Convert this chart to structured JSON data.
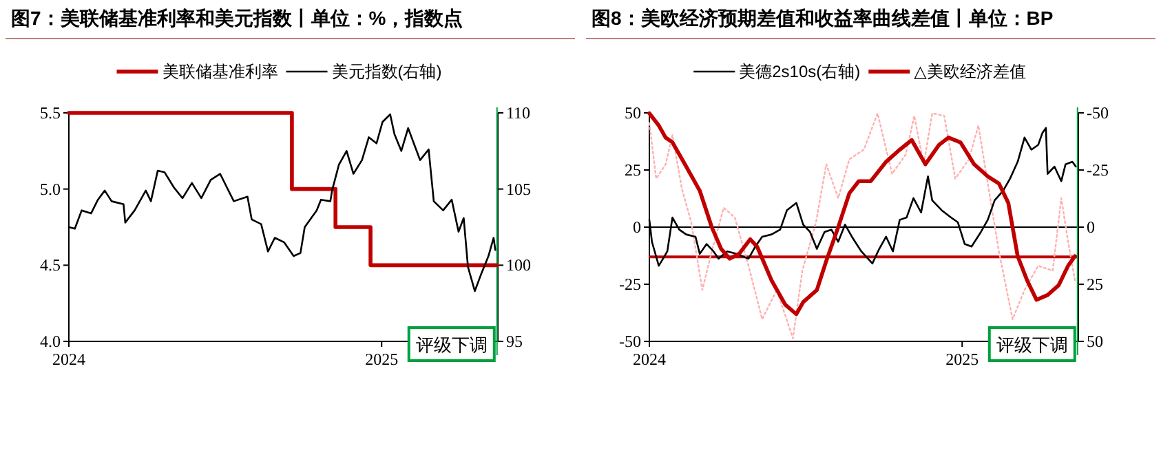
{
  "chart_data": [
    {
      "type": "line",
      "title": "图7：美联储基准利率和美元指数丨单位：%，指数点",
      "legend": "top",
      "xlim": [
        "2024-01-01",
        "2025-05-17"
      ],
      "xticks": [
        {
          "value": "2024-01-01",
          "label": "2024"
        },
        {
          "value": "2025-01-01",
          "label": "2025"
        }
      ],
      "ylim": [
        4,
        5.5
      ],
      "yticks": [
        {
          "value": 4,
          "label": "4.0"
        },
        {
          "value": 4.5,
          "label": "4.5"
        },
        {
          "value": 5,
          "label": "5.0"
        },
        {
          "value": 5.5,
          "label": "5.5"
        }
      ],
      "y2lim": [
        95,
        110
      ],
      "y2ticks": [
        95,
        100,
        105,
        110
      ],
      "ref_lines": [
        {
          "axis": "x",
          "value": "2025-05-16",
          "label": "评级下调",
          "color": "#00a040"
        }
      ],
      "series": [
        {
          "name": "美联储基准利率",
          "type": "step",
          "color": "#c00000",
          "x": [
            "2024-01-01",
            "2024-09-18",
            "2024-11-08",
            "2024-12-19",
            "2025-05-16"
          ],
          "values": [
            5.5,
            5.0,
            4.75,
            4.5,
            4.5
          ]
        },
        {
          "name": "美元指数(右轴)",
          "type": "line",
          "axis": "y2",
          "color": "#000000",
          "x": [
            "2024-01-01",
            "2024-01-08",
            "2024-01-16",
            "2024-01-27",
            "2024-02-04",
            "2024-02-12",
            "2024-02-20",
            "2024-03-05",
            "2024-03-07",
            "2024-03-18",
            "2024-03-31",
            "2024-04-06",
            "2024-04-14",
            "2024-04-22",
            "2024-05-03",
            "2024-05-13",
            "2024-05-24",
            "2024-06-04",
            "2024-06-15",
            "2024-06-26",
            "2024-07-04",
            "2024-07-12",
            "2024-07-28",
            "2024-08-02",
            "2024-08-13",
            "2024-08-21",
            "2024-08-29",
            "2024-09-09",
            "2024-09-20",
            "2024-09-28",
            "2024-10-03",
            "2024-10-17",
            "2024-10-22",
            "2024-11-02",
            "2024-11-04",
            "2024-11-12",
            "2024-11-21",
            "2024-11-29",
            "2024-12-09",
            "2024-12-17",
            "2024-12-26",
            "2025-01-02",
            "2025-01-11",
            "2025-01-16",
            "2025-01-24",
            "2025-02-01",
            "2025-02-09",
            "2025-02-15",
            "2025-02-25",
            "2025-03-03",
            "2025-03-14",
            "2025-03-24",
            "2025-04-01",
            "2025-04-07",
            "2025-04-12",
            "2025-04-20",
            "2025-04-28",
            "2025-05-06",
            "2025-05-12",
            "2025-05-14"
          ],
          "values": [
            102.5,
            102.4,
            103.6,
            103.4,
            104.3,
            104.9,
            104.2,
            104.0,
            102.8,
            103.6,
            104.9,
            104.2,
            106.2,
            106.1,
            105.1,
            104.4,
            105.4,
            104.4,
            105.6,
            106.0,
            105.1,
            104.2,
            104.5,
            103.0,
            102.7,
            100.9,
            101.8,
            101.5,
            100.6,
            100.8,
            102.5,
            103.6,
            104.3,
            104.2,
            104.9,
            106.6,
            107.5,
            106.0,
            106.9,
            108.4,
            108.0,
            109.4,
            109.9,
            108.6,
            107.5,
            109.0,
            107.8,
            106.9,
            107.6,
            104.2,
            103.6,
            104.3,
            102.2,
            103.1,
            99.9,
            98.3,
            99.5,
            100.6,
            101.8,
            101.0
          ]
        }
      ]
    },
    {
      "type": "line",
      "title": "图8：美欧经济预期差值和收益率曲线差值丨单位：BP",
      "legend": "top",
      "xlim": [
        "2024-01-01",
        "2025-05-17"
      ],
      "xticks": [
        {
          "value": "2024-01-01",
          "label": "2024"
        },
        {
          "value": "2025-01-01",
          "label": "2025"
        }
      ],
      "ylim": [
        -50,
        50
      ],
      "yticks": [
        -50,
        -25,
        0,
        25,
        50
      ],
      "y2lim": [
        50,
        -50
      ],
      "y2ticks": [
        -50,
        -25,
        0,
        25,
        50
      ],
      "ref_lines": [
        {
          "axis": "y",
          "value": 0,
          "color": "#000000"
        },
        {
          "axis": "y",
          "value": -13,
          "color": "#c00000"
        },
        {
          "axis": "x",
          "value": "2025-05-16",
          "label": "评级下调",
          "color": "#00a040"
        }
      ],
      "series": [
        {
          "type": "line",
          "line_style": "dotted",
          "color": "#ffb0b0",
          "x": [
            "2024-01-01",
            "2024-01-09",
            "2024-01-20",
            "2024-01-28",
            "2024-02-08",
            "2024-02-19",
            "2024-03-03",
            "2024-03-14",
            "2024-03-28",
            "2024-04-10",
            "2024-04-26",
            "2024-05-12",
            "2024-05-29",
            "2024-06-17",
            "2024-06-28",
            "2024-07-14",
            "2024-07-26",
            "2024-08-09",
            "2024-08-22",
            "2024-09-08",
            "2024-09-24",
            "2024-10-11",
            "2024-10-27",
            "2024-11-06",
            "2024-11-17",
            "2024-11-27",
            "2024-12-11",
            "2024-12-24",
            "2025-01-09",
            "2025-01-20",
            "2025-01-31",
            "2025-02-13",
            "2025-03-01",
            "2025-03-15",
            "2025-03-31",
            "2025-04-17",
            "2025-04-27",
            "2025-05-05",
            "2025-05-13"
          ],
          "values": [
            45.6,
            21.2,
            27.5,
            40.3,
            16.9,
            2.1,
            -27.5,
            -10.6,
            8.5,
            4.2,
            -16.9,
            -40.3,
            -27.5,
            -48.7,
            -19.1,
            2.1,
            27.5,
            12.7,
            29.7,
            33.9,
            49.8,
            23.3,
            31.8,
            48.7,
            27.5,
            49.8,
            48.7,
            21.2,
            29.7,
            44.5,
            19.1,
            -10.6,
            -40.3,
            -27.5,
            -16.9,
            -19.1,
            12.7,
            -6.4,
            -23.3
          ]
        },
        {
          "name": "美德2s10s(右轴)",
          "type": "line",
          "axis": "y2",
          "color": "#000000",
          "x": [
            "2024-01-01",
            "2024-01-04",
            "2024-01-12",
            "2024-01-17",
            "2024-01-22",
            "2024-01-28",
            "2024-02-05",
            "2024-02-13",
            "2024-02-24",
            "2024-02-29",
            "2024-03-08",
            "2024-03-16",
            "2024-03-22",
            "2024-04-01",
            "2024-04-12",
            "2024-04-26",
            "2024-05-04",
            "2024-05-12",
            "2024-05-23",
            "2024-06-02",
            "2024-06-10",
            "2024-06-21",
            "2024-06-29",
            "2024-07-07",
            "2024-07-15",
            "2024-07-24",
            "2024-08-01",
            "2024-08-09",
            "2024-08-17",
            "2024-08-25",
            "2024-09-05",
            "2024-09-18",
            "2024-09-26",
            "2024-10-04",
            "2024-10-12",
            "2024-10-20",
            "2024-10-28",
            "2024-11-05",
            "2024-11-14",
            "2024-11-22",
            "2024-11-27",
            "2024-12-08",
            "2024-12-19",
            "2024-12-27",
            "2025-01-04",
            "2025-01-12",
            "2025-01-23",
            "2025-01-31",
            "2025-02-08",
            "2025-02-18",
            "2025-02-26",
            "2025-03-07",
            "2025-03-15",
            "2025-03-23",
            "2025-03-31",
            "2025-04-05",
            "2025-04-09",
            "2025-04-11",
            "2025-04-19",
            "2025-04-27",
            "2025-05-02",
            "2025-05-10",
            "2025-05-14"
          ],
          "values": [
            -3.2,
            6.4,
            16.9,
            13.8,
            10.6,
            -4.2,
            1.1,
            3.2,
            4.2,
            11.7,
            7.4,
            10.6,
            13.8,
            10.6,
            11.7,
            13.8,
            8.5,
            4.2,
            3.2,
            1.1,
            -7.4,
            -10.6,
            -1.1,
            2.1,
            9.5,
            2.1,
            1.1,
            6.4,
            -1.1,
            4.2,
            10.6,
            15.9,
            9.5,
            4.2,
            10.6,
            -3.2,
            -4.2,
            -12.7,
            -6.4,
            -22.2,
            -11.7,
            -7.4,
            -4.2,
            -2.1,
            7.4,
            8.5,
            2.1,
            -3.2,
            -11.7,
            -15.9,
            -21.2,
            -28.6,
            -39.2,
            -33.9,
            -36.0,
            -41.3,
            -43.4,
            -23.3,
            -26.5,
            -20.1,
            -27.5,
            -28.6,
            -26.5
          ]
        },
        {
          "name": "△美欧经济差值",
          "type": "line",
          "color": "#c00000",
          "x": [
            "2024-01-01",
            "2024-01-12",
            "2024-01-20",
            "2024-01-28",
            "2024-02-10",
            "2024-02-29",
            "2024-03-14",
            "2024-03-25",
            "2024-04-04",
            "2024-04-15",
            "2024-04-28",
            "2024-05-06",
            "2024-05-23",
            "2024-06-08",
            "2024-06-21",
            "2024-06-29",
            "2024-07-15",
            "2024-07-26",
            "2024-08-09",
            "2024-08-22",
            "2024-09-02",
            "2024-09-16",
            "2024-10-04",
            "2024-10-20",
            "2024-11-03",
            "2024-11-19",
            "2024-12-05",
            "2024-12-16",
            "2024-12-30",
            "2025-01-15",
            "2025-01-31",
            "2025-02-13",
            "2025-02-24",
            "2025-03-07",
            "2025-03-18",
            "2025-03-29",
            "2025-04-11",
            "2025-04-24",
            "2025-05-05",
            "2025-05-13"
          ],
          "values": [
            49.8,
            44.5,
            39.2,
            37.1,
            28.6,
            15.9,
            0,
            -9.5,
            -13.8,
            -11.7,
            -5.3,
            -8.5,
            -23.3,
            -33.9,
            -38.1,
            -32.8,
            -27.5,
            -14.8,
            0,
            14.8,
            20.1,
            20.1,
            28.6,
            33.9,
            38.1,
            27.5,
            36.0,
            39.2,
            37.1,
            27.5,
            22.2,
            19.1,
            10.6,
            -12.7,
            -23.3,
            -31.8,
            -29.7,
            -25.4,
            -16.9,
            -12.7
          ]
        }
      ]
    }
  ]
}
